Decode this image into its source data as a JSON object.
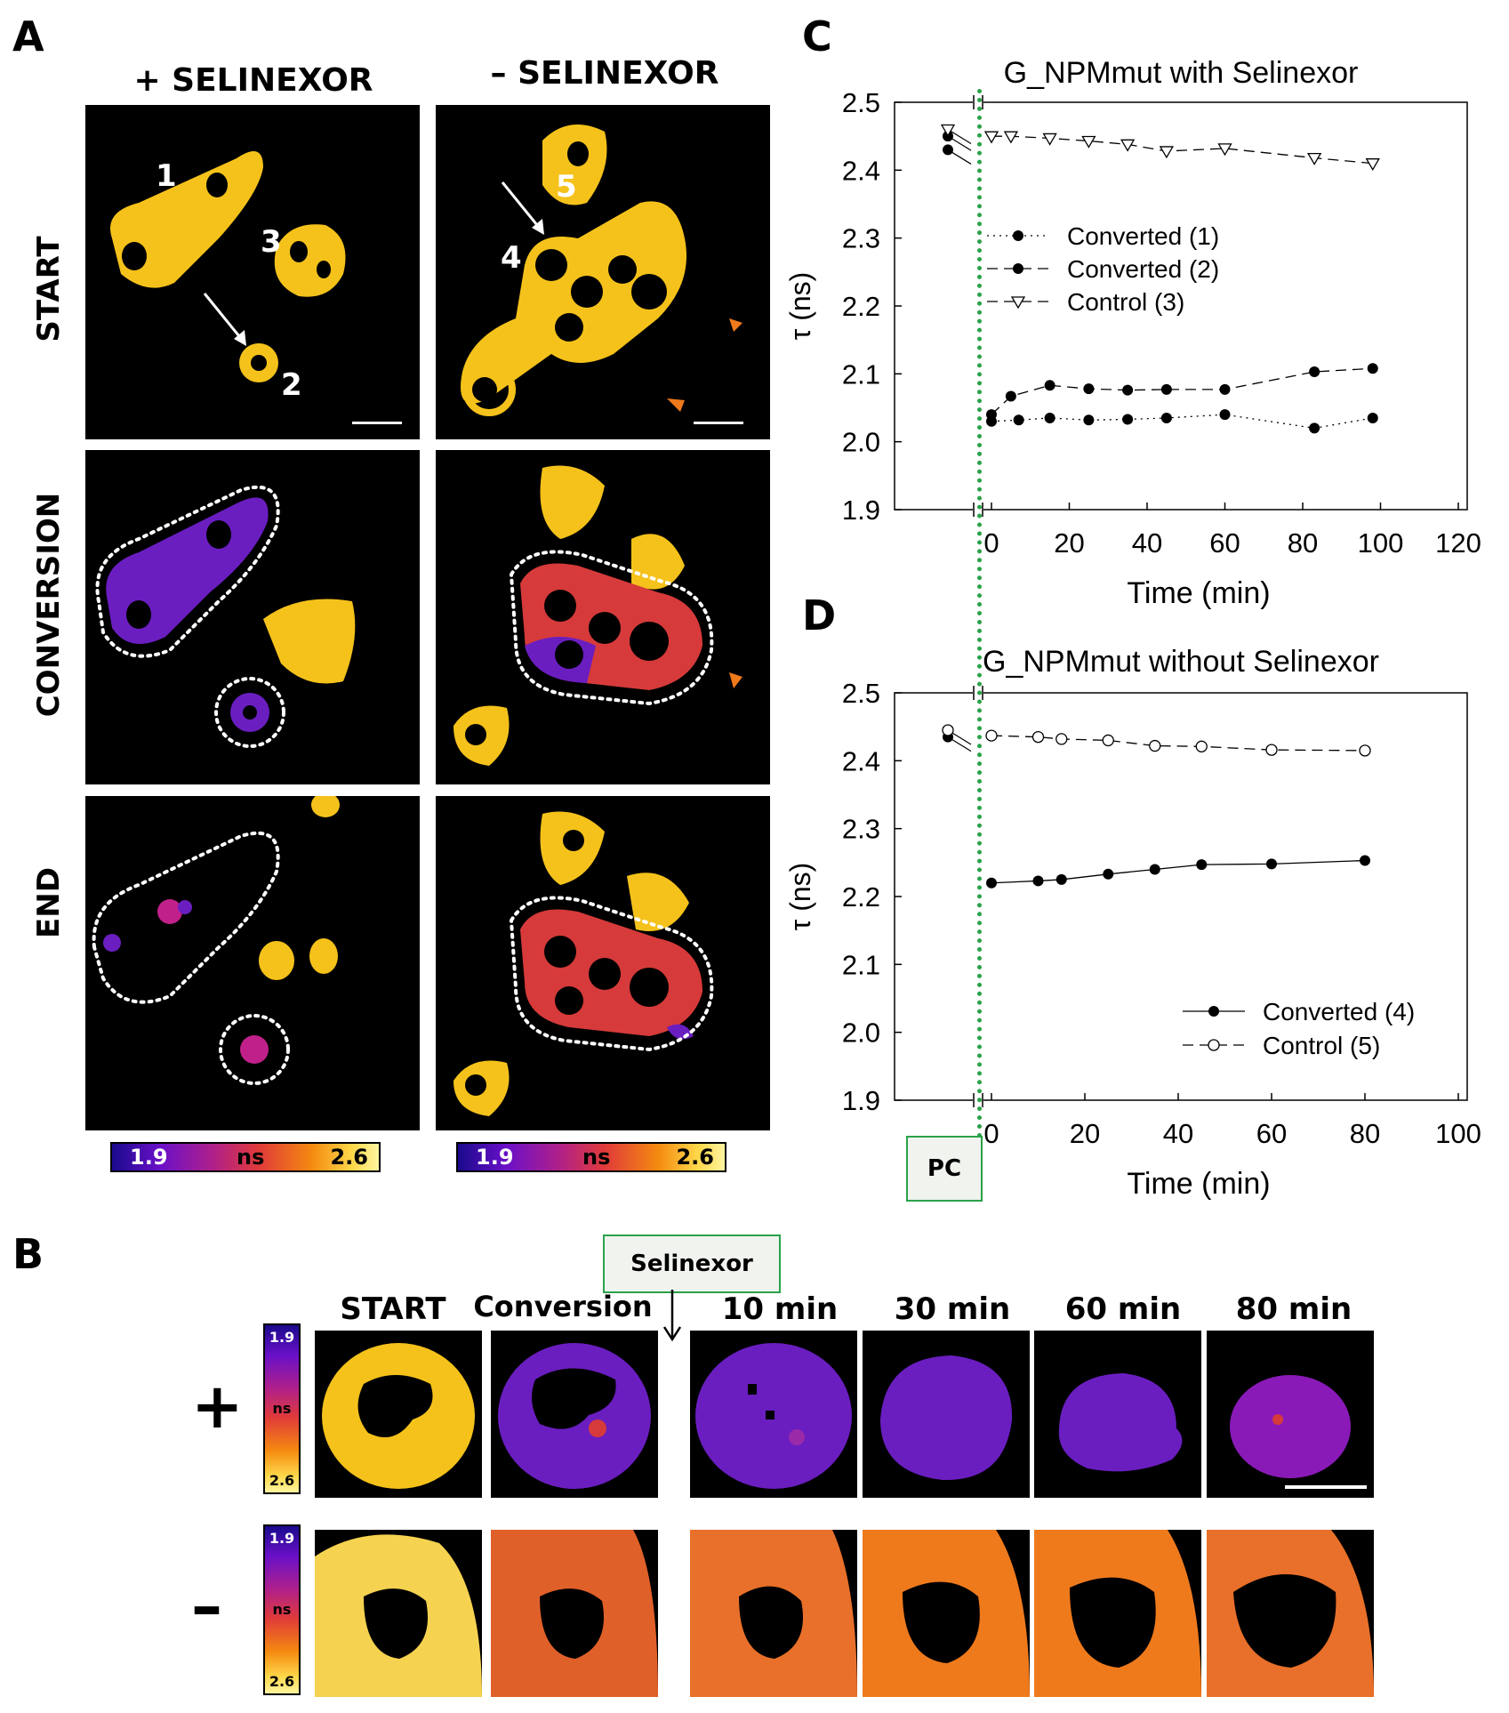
{
  "panelA": {
    "letter": "A",
    "col_plus": "+ SELINEXOR",
    "col_minus": "– SELINEXOR",
    "rows": [
      "START",
      "CONVERSION",
      "END"
    ],
    "cell_labels": [
      "1",
      "2",
      "3",
      "4",
      "5"
    ],
    "colorbar": {
      "min": "1.9",
      "unit": "ns",
      "max": "2.6"
    }
  },
  "panelB": {
    "letter": "B",
    "selinexor_box": "Selinexor",
    "timepoints": [
      "START",
      "Conversion",
      "10 min",
      "30 min",
      "60 min",
      "80 min"
    ],
    "row_signs": [
      "+",
      "–"
    ],
    "colorbar": {
      "min": "1.9",
      "unit": "ns",
      "max": "2.6"
    }
  },
  "pc_box": "PC",
  "chart_data": [
    {
      "panel": "C",
      "type": "scatter",
      "title": "G_NPMmut with Selinexor",
      "xlabel": "Time (min)",
      "ylabel": "τ (ns)",
      "xlim": [
        -25,
        120
      ],
      "ylim": [
        1.9,
        2.5
      ],
      "xticks": [
        "0",
        "20",
        "40",
        "60",
        "80",
        "100",
        "120"
      ],
      "yticks": [
        "1.9",
        "2.0",
        "2.1",
        "2.2",
        "2.3",
        "2.4",
        "2.5"
      ],
      "legend_position": "middle-left",
      "series": [
        {
          "name": "Converted (1)",
          "style": "dotted",
          "marker": "filled-circle",
          "pre": [
            {
              "x": -8,
              "y": 2.45
            }
          ],
          "x": [
            0,
            7,
            15,
            25,
            35,
            45,
            60,
            83,
            98
          ],
          "y": [
            2.03,
            2.032,
            2.035,
            2.032,
            2.033,
            2.035,
            2.04,
            2.02,
            2.035
          ]
        },
        {
          "name": "Converted (2)",
          "style": "dashed",
          "marker": "filled-circle",
          "pre": [
            {
              "x": -8,
              "y": 2.43
            }
          ],
          "x": [
            0,
            5,
            15,
            25,
            35,
            45,
            60,
            83,
            98
          ],
          "y": [
            2.04,
            2.067,
            2.083,
            2.078,
            2.076,
            2.077,
            2.077,
            2.103,
            2.108
          ]
        },
        {
          "name": "Control (3)",
          "style": "dashed",
          "marker": "open-triangle",
          "pre": [
            {
              "x": -8,
              "y": 2.46
            }
          ],
          "x": [
            0,
            5,
            15,
            25,
            35,
            45,
            60,
            83,
            98
          ],
          "y": [
            2.45,
            2.45,
            2.447,
            2.443,
            2.438,
            2.428,
            2.432,
            2.418,
            2.41
          ]
        }
      ]
    },
    {
      "panel": "D",
      "type": "scatter",
      "title": "G_NPMmut without Selinexor",
      "xlabel": "Time (min)",
      "ylabel": "τ (ns)",
      "xlim": [
        -20,
        100
      ],
      "ylim": [
        1.9,
        2.5
      ],
      "xticks": [
        "0",
        "20",
        "40",
        "60",
        "80",
        "100"
      ],
      "yticks": [
        "1.9",
        "2.0",
        "2.1",
        "2.2",
        "2.3",
        "2.4",
        "2.5"
      ],
      "legend_position": "bottom-right",
      "series": [
        {
          "name": "Converted (4)",
          "style": "solid",
          "marker": "filled-circle",
          "pre": [
            {
              "x": -8,
              "y": 2.435
            }
          ],
          "x": [
            0,
            10,
            15,
            25,
            35,
            45,
            60,
            80
          ],
          "y": [
            2.22,
            2.223,
            2.225,
            2.233,
            2.24,
            2.247,
            2.248,
            2.253
          ]
        },
        {
          "name": "Control (5)",
          "style": "dashed",
          "marker": "open-circle",
          "pre": [
            {
              "x": -8,
              "y": 2.445
            }
          ],
          "x": [
            0,
            10,
            15,
            25,
            35,
            45,
            60,
            80
          ],
          "y": [
            2.437,
            2.435,
            2.432,
            2.43,
            2.422,
            2.421,
            2.416,
            2.415
          ]
        }
      ]
    }
  ],
  "colors": {
    "yellow": "#f5c21b",
    "purple": "#6a1ec0",
    "red": "#d63a3a",
    "orange": "#ef7a1c",
    "green": "#2aa24a"
  }
}
